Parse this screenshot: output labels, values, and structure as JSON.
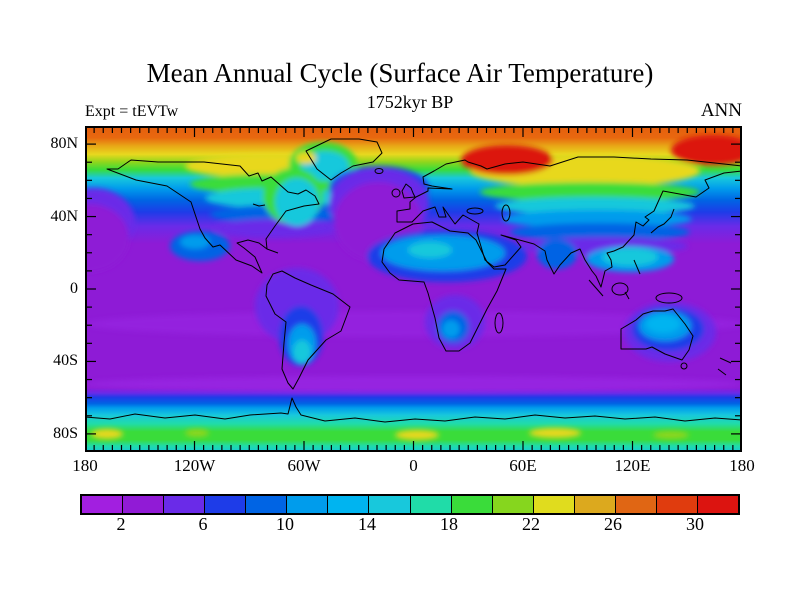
{
  "header": {
    "title": "Mean Annual Cycle (Surface Air Temperature)",
    "subtitle": "1752kyr BP",
    "experiment_label": "Expt = tEVTw",
    "season_label": "ANN"
  },
  "axes": {
    "lat": {
      "range": [
        -90,
        90
      ],
      "minor_tick_step_deg": 10,
      "major_tick_step_deg": 40,
      "ticks": [
        {
          "value": 80,
          "label": "80N"
        },
        {
          "value": 40,
          "label": "40N"
        },
        {
          "value": 0,
          "label": "0"
        },
        {
          "value": -40,
          "label": "40S"
        },
        {
          "value": -80,
          "label": "80S"
        }
      ]
    },
    "lon": {
      "range": [
        -180,
        180
      ],
      "minor_tick_step_deg": 5,
      "major_tick_step_deg": 60,
      "ticks": [
        {
          "value": -180,
          "label": "180"
        },
        {
          "value": -120,
          "label": "120W"
        },
        {
          "value": -60,
          "label": "60W"
        },
        {
          "value": 0,
          "label": "0"
        },
        {
          "value": 60,
          "label": "60E"
        },
        {
          "value": 120,
          "label": "120E"
        },
        {
          "value": 180,
          "label": "180"
        }
      ]
    }
  },
  "colorbar": {
    "min": 0,
    "max": 32,
    "step": 2,
    "labeled_values": [
      2,
      6,
      10,
      14,
      18,
      22,
      26,
      30
    ],
    "colors": [
      "#a21fe0",
      "#911bd6",
      "#6a2be8",
      "#1e3ce8",
      "#0064e4",
      "#009cec",
      "#00b4f0",
      "#18c8dc",
      "#20dca8",
      "#3adc3a",
      "#86d61e",
      "#e0dc1e",
      "#dca91e",
      "#e06614",
      "#e03c0e",
      "#dc1410"
    ]
  },
  "chart_data": {
    "type": "heatmap",
    "title": "Mean Annual Cycle (Surface Air Temperature)",
    "subtitle": "1752kyr BP",
    "experiment": "Expt = tEVTw",
    "season": "ANN",
    "projection": "global equirectangular (cylindrical) map, filled contours",
    "x": {
      "label": "longitude",
      "range": [
        -180,
        180
      ],
      "tick_labels": [
        "180",
        "120W",
        "60W",
        "0",
        "60E",
        "120E",
        "180"
      ]
    },
    "y": {
      "label": "latitude",
      "range": [
        -90,
        90
      ],
      "tick_labels": [
        "80N",
        "40N",
        "0",
        "40S",
        "80S"
      ]
    },
    "contour_levels": [
      0,
      2,
      4,
      6,
      8,
      10,
      12,
      14,
      16,
      18,
      20,
      22,
      24,
      26,
      28,
      30,
      32
    ],
    "labeled_levels": [
      2,
      6,
      10,
      14,
      18,
      22,
      26,
      30
    ],
    "palette": [
      "#a21fe0",
      "#911bd6",
      "#6a2be8",
      "#1e3ce8",
      "#0064e4",
      "#009cec",
      "#00b4f0",
      "#18c8dc",
      "#20dca8",
      "#3adc3a",
      "#86d61e",
      "#e0dc1e",
      "#dca91e",
      "#e06614",
      "#e03c0e",
      "#dc1410"
    ],
    "features": [
      "Arctic Ocean and coasts north of ~75N: 26-30 (orange), maxima >30 (red) over northern Russia ~40-80E and over far-east Siberia/Chukotka 130E-180",
      "Band 65-75N: 22-26 (yellow/gold) over Canada, Siberia and Arctic coastal land",
      "Northern continental interiors 45-65N: 14-22 (green to yellow), decreasing southward to 6-12 (blues) by ~35-45N",
      "Greenland / Baffin region: 14-18 (cyan-turquoise) with 18-22 (green-yellow) fringe on west coast",
      "North Atlantic south of Iceland and mid-latitude oceans: 2-6 (purple) extending north to ~55-60N",
      "Sahara and Arabia: 8-12 (light blue); Tibetan Plateau: 12-16 (cyan); India ~8-10",
      "Tropics and subtropical oceans 30N-55S: 0-4 (purple), lowest amplitude of annual cycle",
      "Interior Australia: 8-12 (light blue/cyan); southern South America 8-14 (blue-cyan); southern Africa 8-12",
      "Southern Ocean 52-65S: rises 4-14 (blue to cyan) toward the Antarctic coast",
      "Antarctic coastal zone ~65-75S: 16-20 (green) with local 22-24 (yellow) patches; southernmost band 14-18 (cyan-turquoise)"
    ],
    "legend_position": "horizontal label bar at bottom",
    "grid": "off (frame ticks only: lon minor 5 deg, lat minor 10 deg)"
  }
}
